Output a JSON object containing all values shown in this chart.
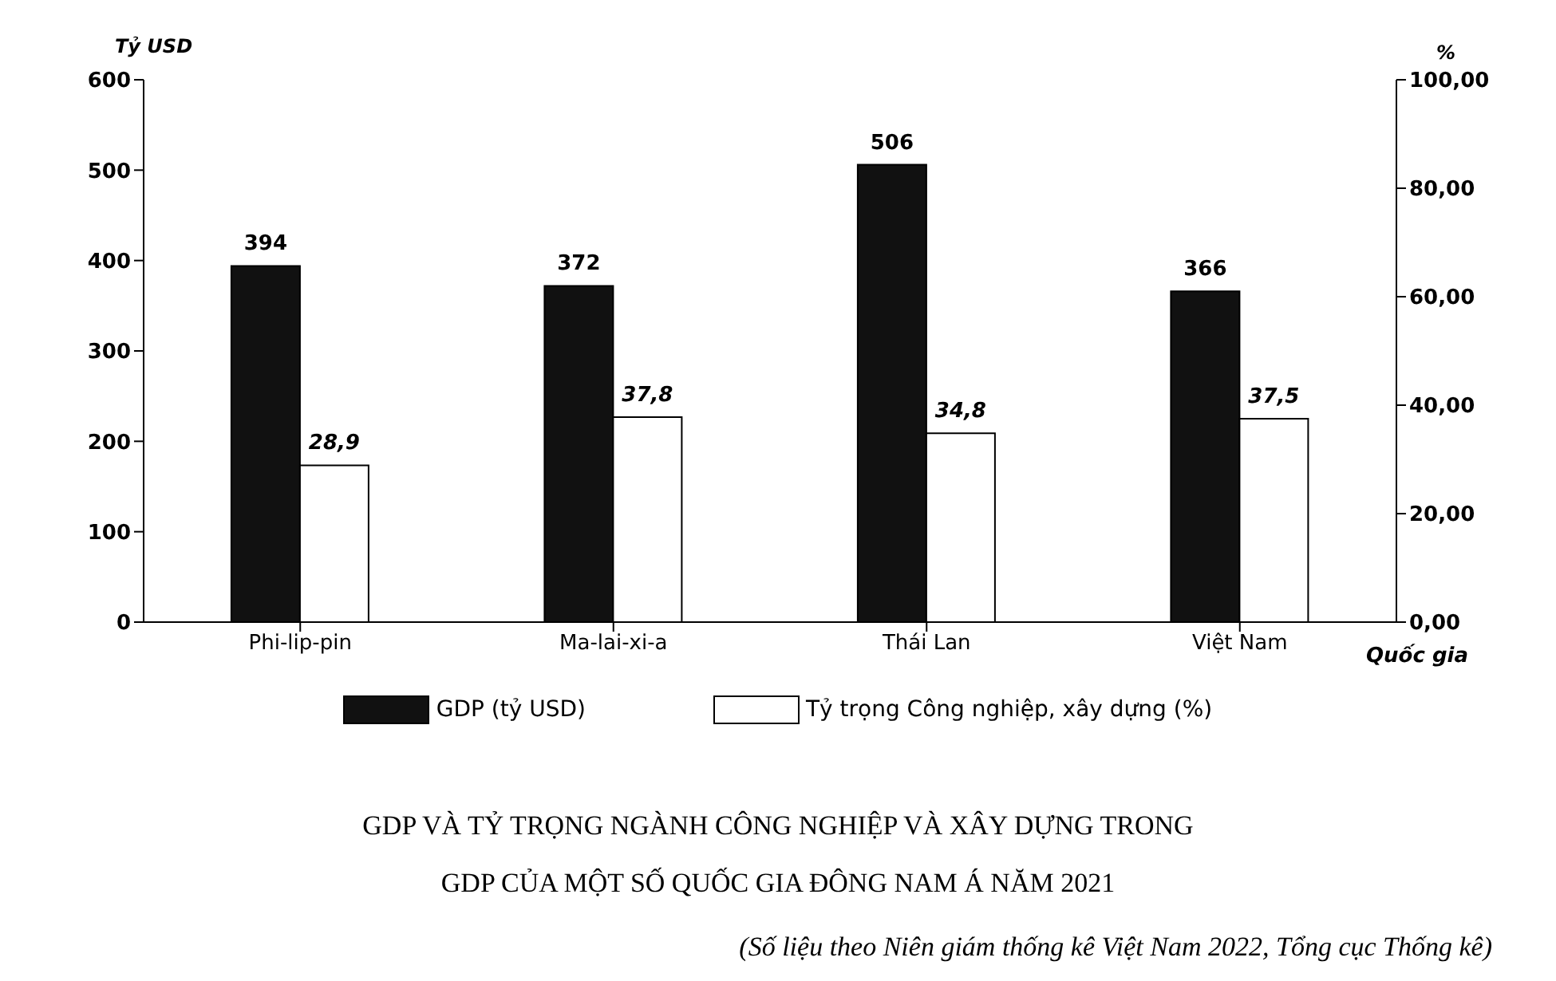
{
  "chart_data": {
    "type": "bar",
    "title": "GDP VÀ TỶ TRỌNG NGÀNH CÔNG NGHIỆP VÀ XÂY DỰNG TRONG GDP CỦA MỘT SỐ QUỐC GIA ĐÔNG NAM Á NĂM 2021",
    "ylabel": "Tỷ USD",
    "y2label": "%",
    "xlabel": "Quốc gia",
    "annotations": [
      "(Số liệu theo Niên giám thống kê Việt Nam 2022, Tổng cục Thống kê)"
    ],
    "categories": [
      "Phi-lip-pin",
      "Ma-lai-xi-a",
      "Thái Lan",
      "Việt Nam"
    ],
    "series": [
      {
        "name": "GDP (tỷ USD)",
        "color": "#111111",
        "values": [
          394,
          372,
          506,
          366
        ],
        "value_labels": [
          "394",
          "372",
          "506",
          "366"
        ]
      },
      {
        "name": "Tỷ trọng Công nghiệp, xây dựng (%)",
        "color": "#ffffff",
        "axis": "y2",
        "values": [
          28.9,
          37.8,
          34.8,
          37.5
        ],
        "value_labels": [
          "28,9",
          "37,8",
          "34,8",
          "37,5"
        ]
      }
    ],
    "ylim": [
      0,
      600
    ],
    "yticks": [
      0,
      100,
      200,
      300,
      400,
      500,
      600
    ],
    "y2lim": [
      0,
      100
    ],
    "y2ticks": [
      {
        "value": 0,
        "label": "0,00"
      },
      {
        "value": 20,
        "label": "20,00"
      },
      {
        "value": 40,
        "label": "40,00"
      },
      {
        "value": 60,
        "label": "60,00"
      },
      {
        "value": 80,
        "label": "80,00"
      },
      {
        "value": 100,
        "label": "100,00"
      }
    ],
    "grid": false,
    "legend": "bottom"
  }
}
